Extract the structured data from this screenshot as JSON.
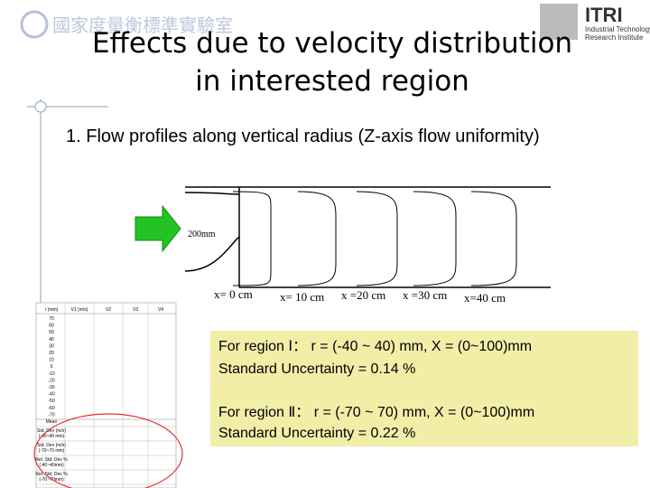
{
  "header": {
    "logo_left": "國家度量衡標準實驗室",
    "logo_right": "ITRI",
    "logo_right_sub": [
      "Industrial Technology",
      "Research Institute"
    ],
    "title": [
      "Effects due to velocity distribution",
      "in interested region"
    ]
  },
  "bullet": "1. Flow profiles along vertical radius (Z-axis flow uniformity)",
  "figure": {
    "inlet_label": "200mm",
    "stations": [
      "x= 0 cm",
      "x= 10 cm",
      "x =20 cm",
      "x =30 cm",
      "x=40 cm"
    ]
  },
  "table": {
    "header": [
      "r (mm)",
      "V1 (m/s)",
      "V2",
      "V3",
      "V4"
    ],
    "rows": [
      "70",
      "60",
      "50",
      "40",
      "30",
      "20",
      "10",
      "0",
      "-10",
      "-20",
      "-30",
      "-40",
      "-50",
      "-60",
      "-70"
    ],
    "summary": [
      [
        "Mean"
      ],
      [
        "Std. Dev (m/s)",
        "(-40~40 mm)"
      ],
      [
        "Std. Dev (m/s)",
        "(-70~70 mm)"
      ],
      [
        "Rel. Std. Dev %",
        "(-40~40mm)"
      ],
      [
        "Rel. Std. Dev %",
        "(-70~70mm)"
      ]
    ]
  },
  "note": {
    "region1": [
      "For region Ⅰ： r = (-40 ~ 40) mm, X = (0~100)mm",
      "Standard Uncertainty = 0.14 %"
    ],
    "region2": [
      "For region Ⅱ： r = (-70 ~ 70) mm, X = (0~100)mm",
      "Standard Uncertainty = 0.22 %"
    ]
  }
}
